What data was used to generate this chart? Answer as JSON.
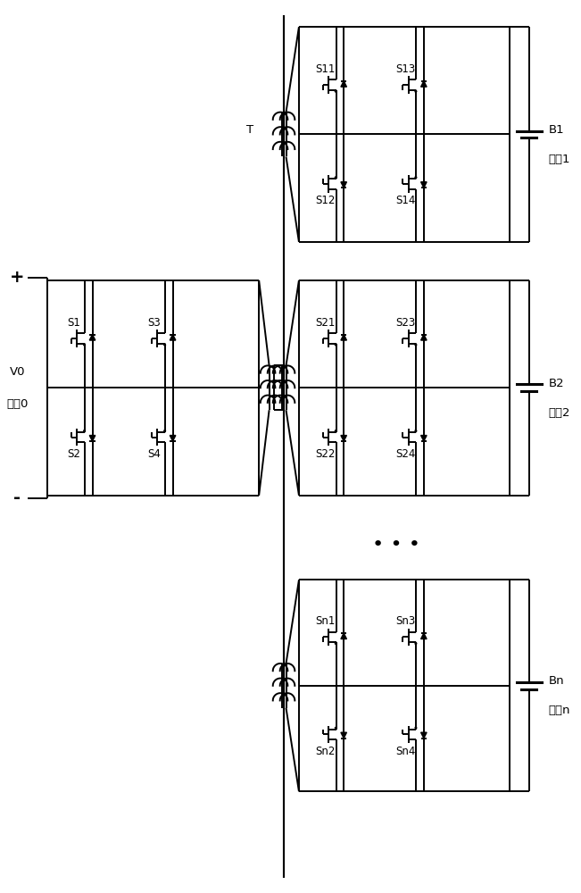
{
  "fig_width": 6.51,
  "fig_height": 10.0,
  "bg_color": "#ffffff",
  "lc": "#000000",
  "lw": 1.4,
  "labels": {
    "plus": "+",
    "minus": "-",
    "V0": "V0",
    "port0": "端口0",
    "T": "T",
    "B1": "B1",
    "port1": "端口1",
    "B2": "B2",
    "port2": "端口2",
    "Bn": "Bn",
    "portn": "端口n",
    "dots": "• • •",
    "S1": "S1",
    "S2": "S2",
    "S3": "S3",
    "S4": "S4",
    "S11": "S11",
    "S12": "S12",
    "S13": "S13",
    "S14": "S14",
    "S21": "S21",
    "S22": "S22",
    "S23": "S23",
    "S24": "S24",
    "Sn1": "Sn1",
    "Sn2": "Sn2",
    "Sn3": "Sn3",
    "Sn4": "Sn4"
  },
  "fs": 9.5,
  "fs_label": 8.5
}
